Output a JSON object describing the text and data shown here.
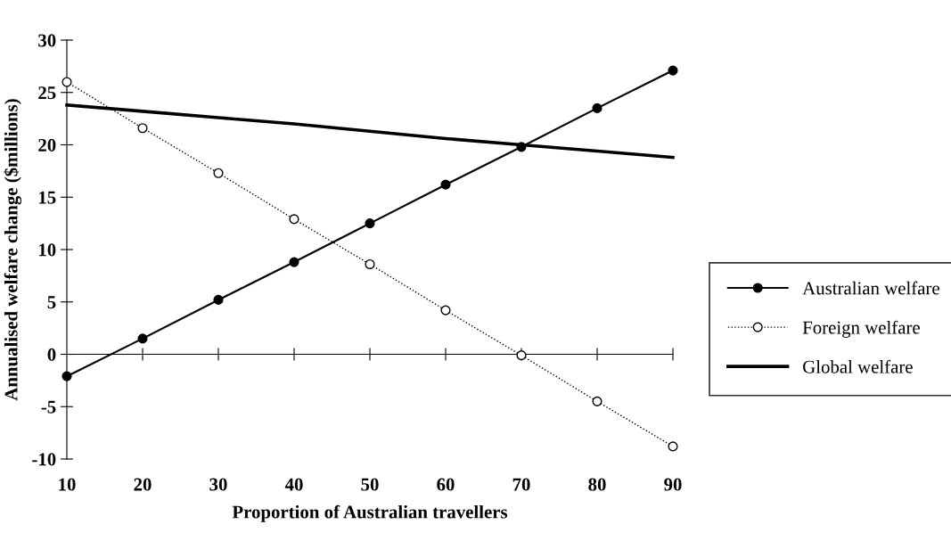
{
  "chart_data": {
    "type": "line",
    "xlabel": "Proportion of Australian travellers",
    "ylabel": "Annualised welfare change ($millions)",
    "x": [
      10,
      20,
      30,
      40,
      50,
      60,
      70,
      80,
      90
    ],
    "series": [
      {
        "name": "Australian welfare",
        "color": "#000000",
        "marker": "circle",
        "line_style": "solid",
        "values": [
          -2.1,
          1.5,
          5.2,
          8.8,
          12.5,
          16.2,
          19.8,
          23.5,
          27.1
        ]
      },
      {
        "name": "Foreign welfare",
        "color": "#000000",
        "marker": "circle",
        "line_style": "dotted",
        "values": [
          26.0,
          21.6,
          17.3,
          12.9,
          8.6,
          4.2,
          -0.1,
          -4.5,
          -8.8
        ]
      },
      {
        "name": "Global welfare",
        "color": "#000000",
        "marker": "none",
        "line_style": "solid",
        "values": [
          23.8,
          23.2,
          22.6,
          22.0,
          21.3,
          20.6,
          20.0,
          19.4,
          18.8
        ]
      }
    ],
    "xlim": [
      10,
      90
    ],
    "xticks": [
      10,
      20,
      30,
      40,
      50,
      60,
      70,
      80,
      90
    ],
    "ylim": [
      -10,
      30
    ],
    "yticks": [
      -10,
      -5,
      0,
      5,
      10,
      15,
      20,
      25,
      30
    ],
    "legend": "right"
  }
}
